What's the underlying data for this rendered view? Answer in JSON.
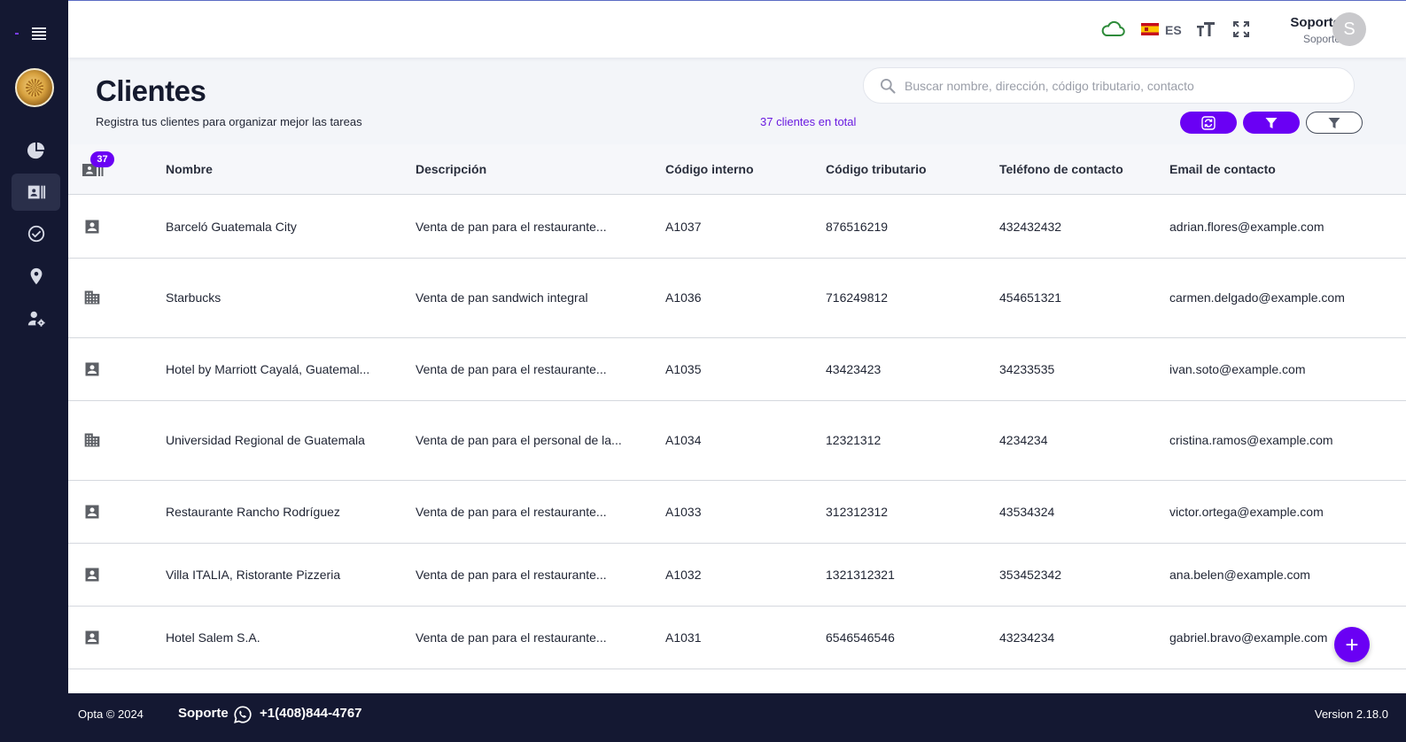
{
  "header": {
    "language": "ES",
    "user_name": "Soporte",
    "user_role": "Soporte",
    "avatar_initial": "S",
    "icons": [
      "cloud-icon",
      "spain-flag-icon",
      "text-size-icon",
      "fullscreen-icon"
    ]
  },
  "sidebar": {
    "items": [
      {
        "name": "dashboard",
        "icon": "pie-chart-icon"
      },
      {
        "name": "clients",
        "icon": "contact-card-icon",
        "active": true
      },
      {
        "name": "tasks",
        "icon": "check-circle-icon"
      },
      {
        "name": "locations",
        "icon": "map-pin-icon"
      },
      {
        "name": "user-settings",
        "icon": "user-gear-icon"
      }
    ]
  },
  "page": {
    "title": "Clientes",
    "subtitle": "Registra tus clientes para organizar mejor las tareas",
    "total_label": "37 clientes en total",
    "search_placeholder": "Buscar nombre, dirección, código tributario, contacto"
  },
  "table": {
    "count_badge": "37",
    "columns": [
      "Nombre",
      "Descripción",
      "Código interno",
      "Código tributario",
      "Teléfono de contacto",
      "Email de contacto"
    ],
    "rows": [
      {
        "type": "person",
        "name": "Barceló Guatemala City",
        "description": "Venta de pan para el restaurante...",
        "internal_code": "A1037",
        "tax_code": "876516219",
        "phone": "432432432",
        "email": "adrian.flores@example.com"
      },
      {
        "type": "company",
        "name": "Starbucks",
        "description": "Venta de pan sandwich integral",
        "internal_code": "A1036",
        "tax_code": "716249812",
        "phone": "454651321",
        "email": "carmen.delgado@example.com"
      },
      {
        "type": "person",
        "name": "Hotel by Marriott Cayalá, Guatemal...",
        "description": "Venta de pan para el restaurante...",
        "internal_code": "A1035",
        "tax_code": "43423423",
        "phone": "34233535",
        "email": "ivan.soto@example.com"
      },
      {
        "type": "company",
        "name": "Universidad Regional de Guatemala",
        "description": "Venta de pan para el personal de la...",
        "internal_code": "A1034",
        "tax_code": "12321312",
        "phone": "4234234",
        "email": "cristina.ramos@example.com"
      },
      {
        "type": "person",
        "name": "Restaurante Rancho Rodríguez",
        "description": "Venta de pan para el restaurante...",
        "internal_code": "A1033",
        "tax_code": "312312312",
        "phone": "43534324",
        "email": "victor.ortega@example.com"
      },
      {
        "type": "person",
        "name": "Villa ITALIA, Ristorante Pizzeria",
        "description": "Venta de pan para el restaurante...",
        "internal_code": "A1032",
        "tax_code": "1321312321",
        "phone": "353452342",
        "email": "ana.belen@example.com"
      },
      {
        "type": "person",
        "name": "Hotel Salem S.A.",
        "description": "Venta de pan para el restaurante...",
        "internal_code": "A1031",
        "tax_code": "6546546546",
        "phone": "43234234",
        "email": "gabriel.bravo@example.com"
      }
    ]
  },
  "footer": {
    "copyright": "Opta © 2024",
    "support_label": "Soporte",
    "phone": "+1(408)844-4767",
    "version": "Version 2.18.0"
  },
  "colors": {
    "accent": "#6a00f4",
    "sidebar_bg": "#141832",
    "cloud_green": "#2e8b3a"
  }
}
